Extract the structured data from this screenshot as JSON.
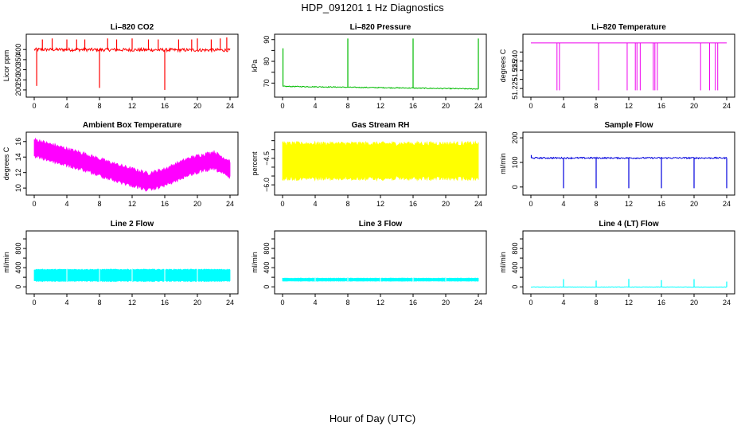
{
  "figure": {
    "title": "HDP_091201  1 Hz Diagnostics",
    "xlabel": "Hour of Day (UTC)"
  },
  "chart_data": [
    {
      "type": "line",
      "title": "Li–820 CO2",
      "ylabel": "Licor ppm",
      "color": "#ff0000",
      "xlim": [
        0,
        24
      ],
      "ylim": [
        180,
        460
      ],
      "yticks": [
        200,
        250,
        300,
        350,
        400
      ],
      "ytick_labels": [
        "200",
        "250",
        "300",
        "350",
        "400"
      ],
      "xticks": [
        0,
        4,
        8,
        12,
        16,
        20,
        24
      ],
      "baseline": [
        [
          0,
          400
        ],
        [
          24,
          397
        ]
      ],
      "noise": 8,
      "spikes": [
        [
          0.3,
          220
        ],
        [
          1,
          450
        ],
        [
          2.2,
          455
        ],
        [
          4,
          450
        ],
        [
          5.2,
          450
        ],
        [
          6.2,
          450
        ],
        [
          8,
          210
        ],
        [
          9,
          455
        ],
        [
          10.1,
          450
        ],
        [
          12,
          455
        ],
        [
          14,
          450
        ],
        [
          15.2,
          450
        ],
        [
          16,
          200
        ],
        [
          17.7,
          450
        ],
        [
          19.3,
          450
        ],
        [
          20,
          455
        ],
        [
          21.7,
          450
        ],
        [
          22.8,
          455
        ],
        [
          23.6,
          460
        ]
      ]
    },
    {
      "type": "line",
      "title": "Li–820 Pressure",
      "ylabel": "kPa",
      "color": "#00bb00",
      "xlim": [
        0,
        24
      ],
      "ylim": [
        65,
        91
      ],
      "yticks": [
        70,
        75,
        80,
        85,
        90
      ],
      "ytick_labels": [
        "70",
        "",
        "80",
        "",
        "90"
      ],
      "xticks": [
        0,
        4,
        8,
        12,
        16,
        20,
        24
      ],
      "baseline": [
        [
          0,
          68.5
        ],
        [
          24,
          67.3
        ]
      ],
      "noise": 0.2,
      "spikes": [
        [
          0.05,
          86
        ],
        [
          8,
          90.5
        ],
        [
          16,
          90.5
        ],
        [
          24,
          90.5
        ]
      ]
    },
    {
      "type": "line",
      "title": "Li–820 Temperature",
      "ylabel": "degrees C",
      "color": "#ee00ee",
      "xlim": [
        0,
        24
      ],
      "ylim": [
        51.222,
        51.253
      ],
      "yticks": [
        51.225,
        51.23,
        51.235,
        51.24,
        51.245
      ],
      "ytick_labels": [
        "51.225",
        "",
        "51.235",
        "51.240",
        ""
      ],
      "xticks": [
        0,
        4,
        8,
        12,
        16,
        20,
        24
      ],
      "baseline": [
        [
          0,
          51.25
        ],
        [
          24,
          51.25
        ]
      ],
      "noise": 0,
      "dips": [
        3.2,
        3.5,
        8.3,
        11.8,
        12.8,
        13.0,
        13.4,
        15.0,
        15.2,
        15.5,
        20.8,
        21.9,
        22.6,
        22.9
      ],
      "dip_to": 51.224
    },
    {
      "type": "line",
      "title": "Ambient Box Temperature",
      "ylabel": "degrees C",
      "color": "#ff00ff",
      "xlim": [
        0,
        24
      ],
      "ylim": [
        9.5,
        16.8
      ],
      "yticks": [
        10,
        12,
        14,
        16
      ],
      "ytick_labels": [
        "10",
        "12",
        "14",
        "16"
      ],
      "xticks": [
        0,
        4,
        8,
        12,
        16,
        20,
        24
      ],
      "band": "ambient"
    },
    {
      "type": "line",
      "title": "Gas Stream RH",
      "ylabel": "percent",
      "color": "#ffff00",
      "xlim": [
        0,
        24
      ],
      "ylim": [
        -6.4,
        -3.2
      ],
      "yticks": [
        -6,
        -5.5,
        -5,
        -4.5,
        -4,
        -3.5
      ],
      "ytick_labels": [
        "−6.0",
        "",
        "",
        "−4.5",
        "",
        ""
      ],
      "xticks": [
        0,
        4,
        8,
        12,
        16,
        20,
        24
      ],
      "band": "rh"
    },
    {
      "type": "line",
      "title": "Sample Flow",
      "ylabel": "ml/min",
      "color": "#0000dd",
      "xlim": [
        0,
        24
      ],
      "ylim": [
        -20,
        210
      ],
      "yticks": [
        0,
        100,
        200
      ],
      "ytick_labels": [
        "0",
        "100",
        "200"
      ],
      "xticks": [
        0,
        4,
        8,
        12,
        16,
        20,
        24
      ],
      "baseline": [
        [
          0,
          118
        ],
        [
          24,
          118
        ]
      ],
      "noise": 3,
      "spikes": [
        [
          4,
          -5
        ],
        [
          8,
          -5
        ],
        [
          12,
          -5
        ],
        [
          16,
          -5
        ],
        [
          20,
          -5
        ],
        [
          24,
          -5
        ],
        [
          0.05,
          130
        ]
      ]
    },
    {
      "type": "line",
      "title": "Line 2 Flow",
      "ylabel": "ml/min",
      "color": "#00ffff",
      "xlim": [
        0,
        24
      ],
      "ylim": [
        -80,
        1100
      ],
      "yticks": [
        0,
        200,
        400,
        600,
        800,
        1000
      ],
      "ytick_labels": [
        "0",
        "",
        "400",
        "",
        "800",
        ""
      ],
      "xticks": [
        0,
        4,
        8,
        12,
        16,
        20,
        24
      ],
      "band": "line2"
    },
    {
      "type": "line",
      "title": "Line 3 Flow",
      "ylabel": "ml/min",
      "color": "#00ffff",
      "xlim": [
        0,
        24
      ],
      "ylim": [
        -80,
        1100
      ],
      "yticks": [
        0,
        200,
        400,
        600,
        800,
        1000
      ],
      "ytick_labels": [
        "0",
        "",
        "400",
        "",
        "800",
        ""
      ],
      "xticks": [
        0,
        4,
        8,
        12,
        16,
        20,
        24
      ],
      "band": "line3"
    },
    {
      "type": "line",
      "title": "Line 4 (LT) Flow",
      "ylabel": "ml/min",
      "color": "#00ffff",
      "xlim": [
        0,
        24
      ],
      "ylim": [
        -80,
        1100
      ],
      "yticks": [
        0,
        200,
        400,
        600,
        800,
        1000
      ],
      "ytick_labels": [
        "0",
        "",
        "400",
        "",
        "800",
        ""
      ],
      "xticks": [
        0,
        4,
        8,
        12,
        16,
        20,
        24
      ],
      "baseline": [
        [
          0,
          -5
        ],
        [
          24,
          -5
        ]
      ],
      "noise": 4,
      "spikes": [
        [
          4,
          160
        ],
        [
          8,
          130
        ],
        [
          12,
          165
        ],
        [
          16,
          140
        ],
        [
          20,
          160
        ],
        [
          24,
          110
        ]
      ]
    }
  ]
}
